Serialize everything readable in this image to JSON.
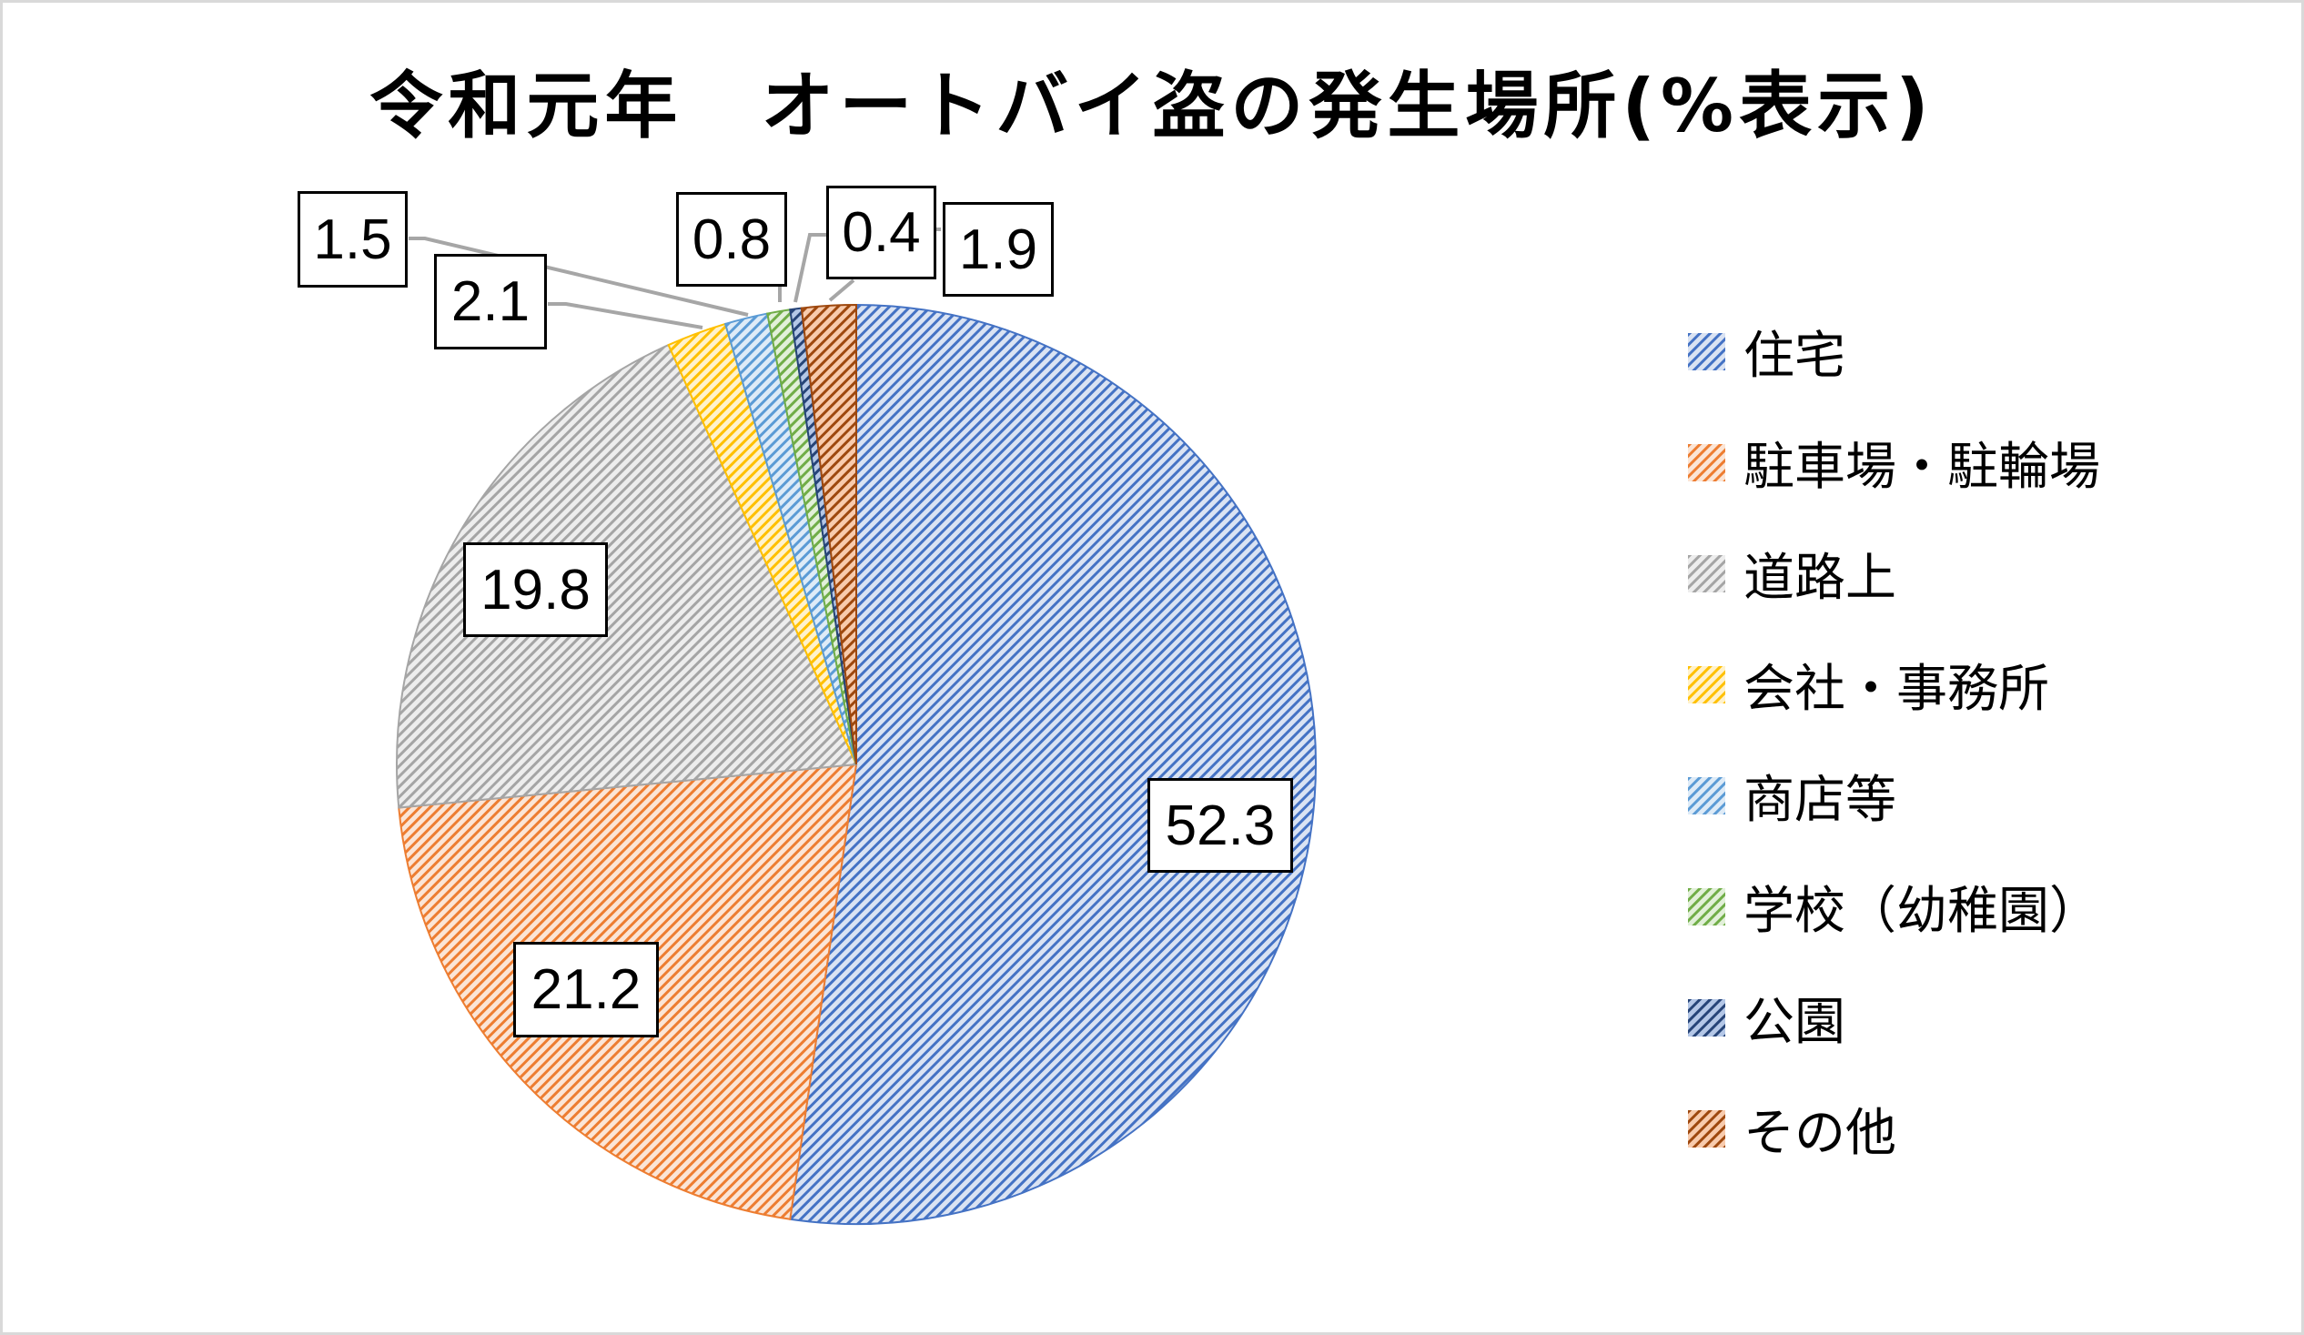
{
  "title": "令和元年　オートバイ盗の発生場所(%表示)",
  "legend": [
    {
      "label": "住宅",
      "color": "#4472c4",
      "light": "#dae3f3"
    },
    {
      "label": "駐車場・駐輪場",
      "color": "#ed7d31",
      "light": "#fbe5d6"
    },
    {
      "label": "道路上",
      "color": "#a5a5a5",
      "light": "#ededed"
    },
    {
      "label": "会社・事務所",
      "color": "#ffc000",
      "light": "#fff2cc"
    },
    {
      "label": "商店等",
      "color": "#5b9bd5",
      "light": "#deebf7"
    },
    {
      "label": "学校（幼稚園）",
      "color": "#70ad47",
      "light": "#e2f0d9"
    },
    {
      "label": "公園",
      "color": "#264478",
      "light": "#b4c7e7"
    },
    {
      "label": "その他",
      "color": "#9e480e",
      "light": "#f8cbad"
    }
  ],
  "labels": [
    "52.3",
    "21.2",
    "19.8",
    "2.1",
    "1.5",
    "0.8",
    "0.4",
    "1.9"
  ],
  "chart_data": {
    "type": "pie",
    "title": "令和元年　オートバイ盗の発生場所(%表示)",
    "categories": [
      "住宅",
      "駐車場・駐輪場",
      "道路上",
      "会社・事務所",
      "商店等",
      "学校（幼稚園）",
      "公園",
      "その他"
    ],
    "values": [
      52.3,
      21.2,
      19.8,
      2.1,
      1.5,
      0.8,
      0.4,
      1.9
    ],
    "unit": "%",
    "start_angle": "12 o'clock, clockwise",
    "legend_position": "right",
    "fill": "diagonal hatch pattern"
  }
}
